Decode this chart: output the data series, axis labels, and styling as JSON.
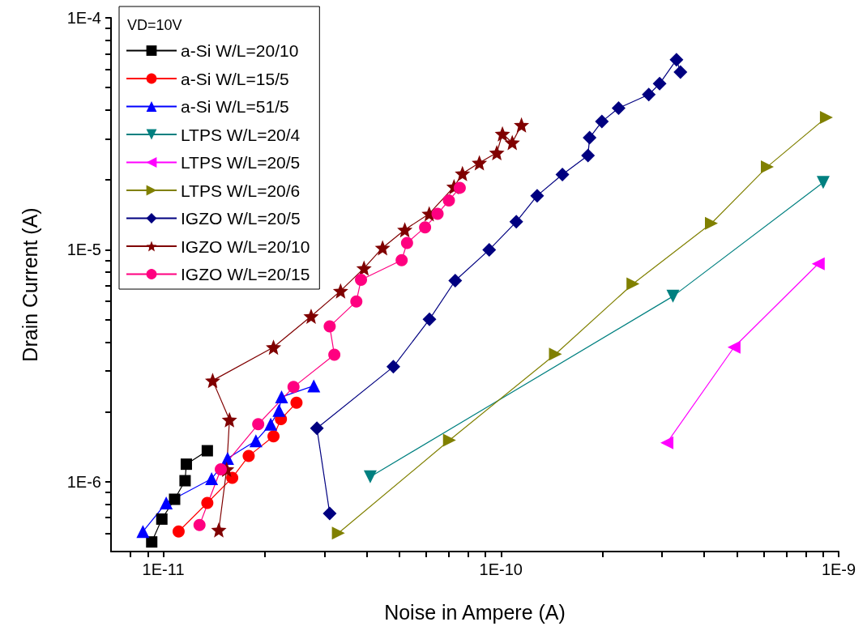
{
  "chart_data": {
    "type": "line",
    "xlabel": "Noise in Ampere (A)",
    "ylabel": "Drain Current (A)",
    "legend_title": "VD=10V",
    "legend": "top left",
    "grid": false,
    "log": "xy",
    "xlim": [
      7e-12,
      1e-09
    ],
    "ylim": [
      5e-07,
      0.0001
    ],
    "xticks": [
      {
        "value": 8e-12,
        "label": null
      },
      {
        "value": 9e-12,
        "label": null
      },
      {
        "value": 1e-11,
        "label": "1E-11"
      },
      {
        "value": 2e-11,
        "label": null
      },
      {
        "value": 3e-11,
        "label": null
      },
      {
        "value": 4e-11,
        "label": null
      },
      {
        "value": 5e-11,
        "label": null
      },
      {
        "value": 6e-11,
        "label": null
      },
      {
        "value": 7e-11,
        "label": null
      },
      {
        "value": 8e-11,
        "label": null
      },
      {
        "value": 9e-11,
        "label": null
      },
      {
        "value": 1e-10,
        "label": "1E-10"
      },
      {
        "value": 2e-10,
        "label": null
      },
      {
        "value": 3e-10,
        "label": null
      },
      {
        "value": 4e-10,
        "label": null
      },
      {
        "value": 5e-10,
        "label": null
      },
      {
        "value": 6e-10,
        "label": null
      },
      {
        "value": 7e-10,
        "label": null
      },
      {
        "value": 8e-10,
        "label": null
      },
      {
        "value": 9e-10,
        "label": null
      },
      {
        "value": 1e-09,
        "label": "1E-9"
      }
    ],
    "yticks": [
      {
        "value": 6e-07,
        "label": null
      },
      {
        "value": 7e-07,
        "label": null
      },
      {
        "value": 8e-07,
        "label": null
      },
      {
        "value": 9e-07,
        "label": null
      },
      {
        "value": 1e-06,
        "label": "1E-6"
      },
      {
        "value": 2e-06,
        "label": null
      },
      {
        "value": 3e-06,
        "label": null
      },
      {
        "value": 4e-06,
        "label": null
      },
      {
        "value": 5e-06,
        "label": null
      },
      {
        "value": 6e-06,
        "label": null
      },
      {
        "value": 7e-06,
        "label": null
      },
      {
        "value": 8e-06,
        "label": null
      },
      {
        "value": 9e-06,
        "label": null
      },
      {
        "value": 1e-05,
        "label": "1E-5"
      },
      {
        "value": 2e-05,
        "label": null
      },
      {
        "value": 3e-05,
        "label": null
      },
      {
        "value": 4e-05,
        "label": null
      },
      {
        "value": 5e-05,
        "label": null
      },
      {
        "value": 6e-05,
        "label": null
      },
      {
        "value": 7e-05,
        "label": null
      },
      {
        "value": 8e-05,
        "label": null
      },
      {
        "value": 9e-05,
        "label": null
      },
      {
        "value": 0.0001,
        "label": "1E-4"
      }
    ],
    "series": [
      {
        "name": "a-Si W/L=20/10",
        "color": "#000000",
        "marker": "square",
        "x": [
          9.24e-12,
          9.9e-12,
          1.08e-11,
          1.16e-11,
          1.17e-11,
          1.35e-11
        ],
        "values": [
          5.5e-07,
          6.9e-07,
          8.4e-07,
          1.01e-06,
          1.19e-06,
          1.36e-06
        ]
      },
      {
        "name": "a-Si W/L=15/5",
        "color": "#ff0000",
        "marker": "circle",
        "x": [
          1.11e-11,
          1.35e-11,
          1.6e-11,
          1.79e-11,
          2.12e-11,
          2.23e-11,
          2.48e-11
        ],
        "values": [
          6.1e-07,
          8.1e-07,
          1.04e-06,
          1.29e-06,
          1.57e-06,
          1.86e-06,
          2.19e-06
        ]
      },
      {
        "name": "a-Si W/L=51/5",
        "color": "#0000ff",
        "marker": "triangle",
        "x": [
          8.7e-12,
          1.02e-11,
          1.39e-11,
          1.55e-11,
          1.88e-11,
          2.08e-11,
          2.2e-11,
          2.24e-11,
          2.79e-11
        ],
        "values": [
          6.1e-07,
          8.1e-07,
          1.03e-06,
          1.26e-06,
          1.5e-06,
          1.77e-06,
          2.03e-06,
          2.32e-06,
          2.59e-06
        ]
      },
      {
        "name": "LTPS W/L=20/4",
        "color": "#008080",
        "marker": "triangle-down",
        "x": [
          4.1e-11,
          3.23e-10,
          9e-10
        ],
        "values": [
          1.05e-06,
          6.3e-06,
          1.95e-05
        ]
      },
      {
        "name": "LTPS W/L=20/5",
        "color": "#ff00ff",
        "marker": "triangle-left",
        "x": [
          3.1e-10,
          4.9e-10,
          8.7e-10
        ],
        "values": [
          1.47e-06,
          3.8e-06,
          8.7e-06
        ]
      },
      {
        "name": "LTPS W/L=20/6",
        "color": "#808000",
        "marker": "triangle-right",
        "x": [
          3.3e-11,
          7.04e-11,
          1.45e-10,
          2.46e-10,
          4.2e-10,
          6.15e-10,
          9.2e-10
        ],
        "values": [
          6e-07,
          1.51e-06,
          3.55e-06,
          7.13e-06,
          1.3e-05,
          2.28e-05,
          3.72e-05
        ]
      },
      {
        "name": "IGZO W/L=20/5",
        "color": "#000080",
        "marker": "diamond",
        "x": [
          3.11e-11,
          2.85e-11,
          4.8e-11,
          6.14e-11,
          7.32e-11,
          9.23e-11,
          1.11e-10,
          1.28e-10,
          1.52e-10,
          1.81e-10,
          1.83e-10,
          1.99e-10,
          2.23e-10,
          2.74e-10,
          2.95e-10,
          3.31e-10,
          3.4e-10
        ],
        "values": [
          7.3e-07,
          1.7e-06,
          3.13e-06,
          5.01e-06,
          7.36e-06,
          1e-05,
          1.32e-05,
          1.71e-05,
          2.11e-05,
          2.55e-05,
          3.04e-05,
          3.57e-05,
          4.08e-05,
          4.67e-05,
          5.2e-05,
          6.6e-05,
          5.84e-05
        ]
      },
      {
        "name": "IGZO W/L=20/10",
        "color": "#800000",
        "marker": "star",
        "x": [
          1.46e-11,
          1.54e-11,
          1.57e-11,
          1.4e-11,
          2.12e-11,
          2.74e-11,
          3.35e-11,
          3.93e-11,
          4.46e-11,
          5.19e-11,
          6.13e-11,
          7.26e-11,
          7.69e-11,
          8.63e-11,
          9.72e-11,
          1.01e-10,
          1.08e-10,
          1.15e-10
        ],
        "values": [
          6.2e-07,
          1.13e-06,
          1.85e-06,
          2.73e-06,
          3.8e-06,
          5.17e-06,
          6.65e-06,
          8.33e-06,
          1.02e-05,
          1.22e-05,
          1.43e-05,
          1.87e-05,
          2.13e-05,
          2.37e-05,
          2.62e-05,
          3.16e-05,
          2.9e-05,
          3.45e-05
        ]
      },
      {
        "name": "IGZO W/L=20/15",
        "color": "#ff0080",
        "marker": "circle",
        "x": [
          1.28e-11,
          1.48e-11,
          1.91e-11,
          2.43e-11,
          3.21e-11,
          3.11e-11,
          3.73e-11,
          3.85e-11,
          5.08e-11,
          5.27e-11,
          5.96e-11,
          6.49e-11,
          7.01e-11,
          7.55e-11
        ],
        "values": [
          6.5e-07,
          1.13e-06,
          1.77e-06,
          2.56e-06,
          3.53e-06,
          4.67e-06,
          5.99e-06,
          7.42e-06,
          9.02e-06,
          1.07e-05,
          1.25e-05,
          1.43e-05,
          1.63e-05,
          1.85e-05
        ]
      }
    ]
  }
}
